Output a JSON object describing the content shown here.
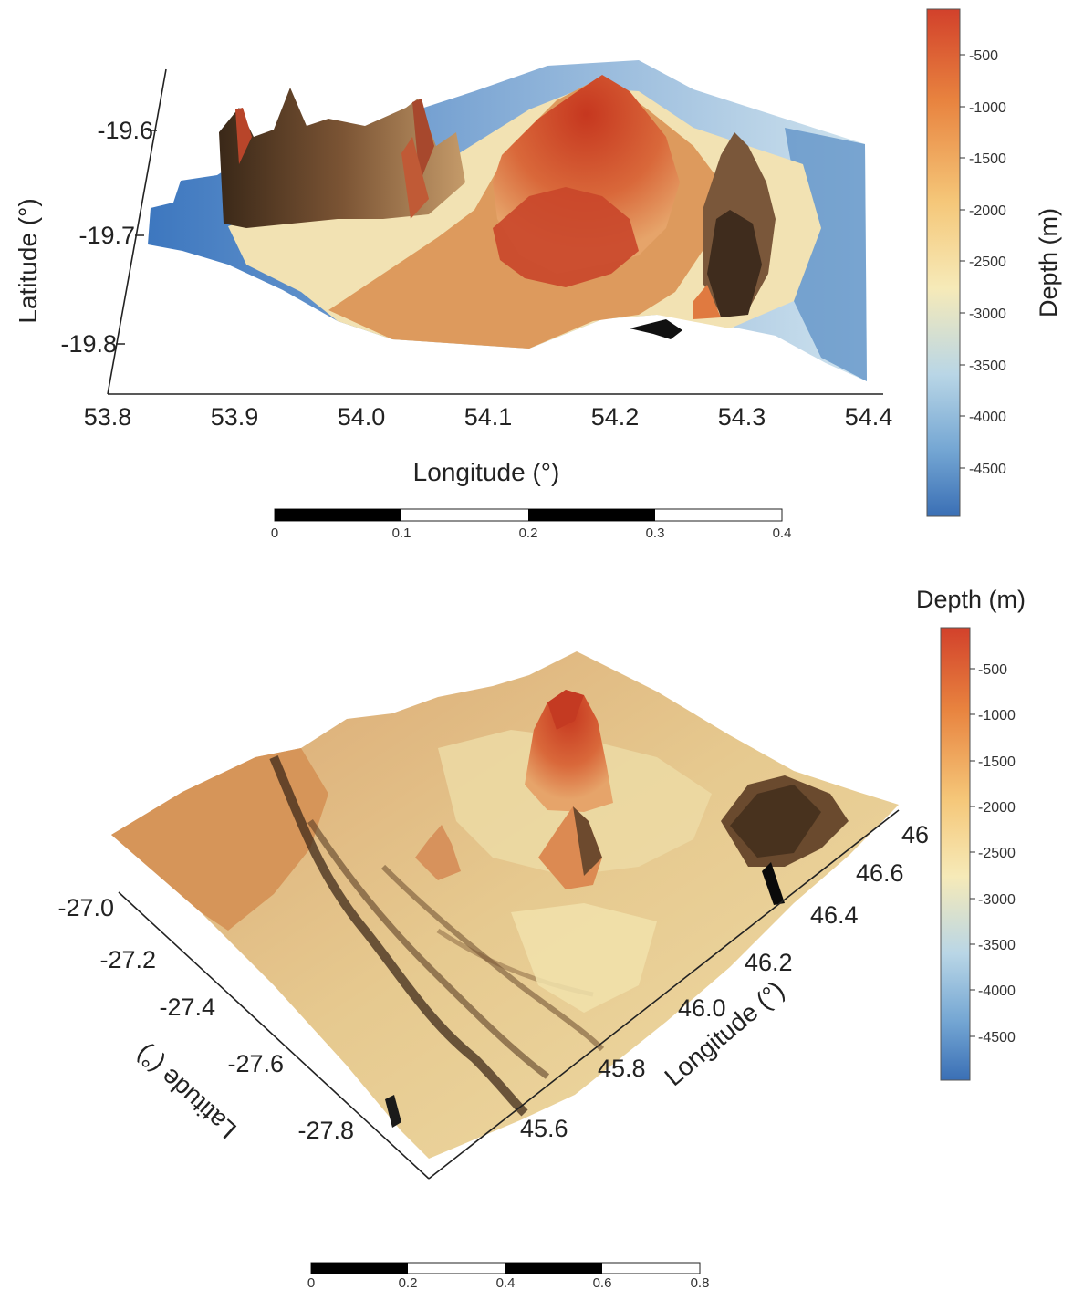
{
  "panel1": {
    "lat_ticks": [
      "-19.6",
      "-19.7",
      "-19.8"
    ],
    "lon_ticks": [
      "53.8",
      "53.9",
      "54.0",
      "54.1",
      "54.2",
      "54.3",
      "54.4"
    ],
    "xlabel": "Longitude (°)",
    "ylabel": "Latitude (°)",
    "colorbar": {
      "title": "Depth (m)",
      "ticks": [
        "-500",
        "-1000",
        "-1500",
        "-2000",
        "-2500",
        "-3000",
        "-3500",
        "-4000",
        "-4500"
      ]
    },
    "scalebar": {
      "ticks": [
        "0",
        "0.1",
        "0.2",
        "0.3",
        "0.4"
      ]
    }
  },
  "panel2": {
    "lat_ticks": [
      "-27.0",
      "-27.2",
      "-27.4",
      "-27.6",
      "-27.8"
    ],
    "lon_ticks": [
      "45.6",
      "45.8",
      "46.0",
      "46.2",
      "46.4",
      "46.6",
      "46"
    ],
    "xlabel": "Longitude (°)",
    "ylabel": "Latitude (°)",
    "colorbar": {
      "title": "Depth (m)",
      "ticks": [
        "-500",
        "-1000",
        "-1500",
        "-2000",
        "-2500",
        "-3000",
        "-3500",
        "-4000",
        "-4500"
      ]
    },
    "scalebar": {
      "ticks": [
        "0",
        "0.2",
        "0.4",
        "0.6",
        "0.8"
      ]
    }
  },
  "colors": {
    "shallow": "#d2412b",
    "mid": "#f6eab8",
    "deep": "#3a6fb5"
  }
}
